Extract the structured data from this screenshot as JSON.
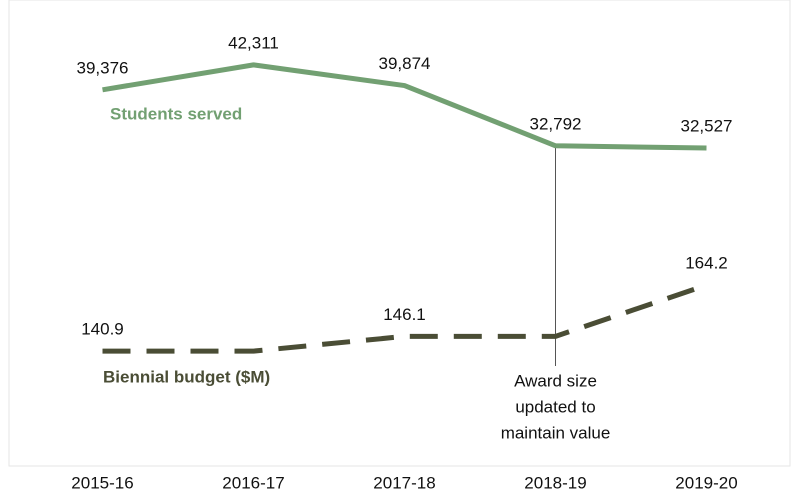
{
  "chart_data": {
    "type": "line",
    "categories": [
      "2015-16",
      "2016-17",
      "2017-18",
      "2018-19",
      "2019-20"
    ],
    "series": [
      {
        "name": "Students served",
        "color": "#72a072",
        "values": [
          39376,
          42311,
          39874,
          32792,
          32527
        ],
        "value_labels": [
          "39,376",
          "42,311",
          "39,874",
          "32,792",
          "32,527"
        ]
      },
      {
        "name": "Biennial budget ($M)",
        "color": "#4a4d35",
        "axis": "y2",
        "dashed": true,
        "values": [
          140.9,
          140.9,
          146.1,
          146.1,
          164.2
        ],
        "value_labels": [
          "140.9",
          null,
          "146.1",
          null,
          "164.2"
        ]
      }
    ],
    "ylim": [
      5000,
      45000
    ],
    "y2lim": [
      130,
      250
    ],
    "annotation": {
      "category_index": 3,
      "lines": [
        "Award size",
        "updated to",
        "maintain value"
      ]
    }
  }
}
